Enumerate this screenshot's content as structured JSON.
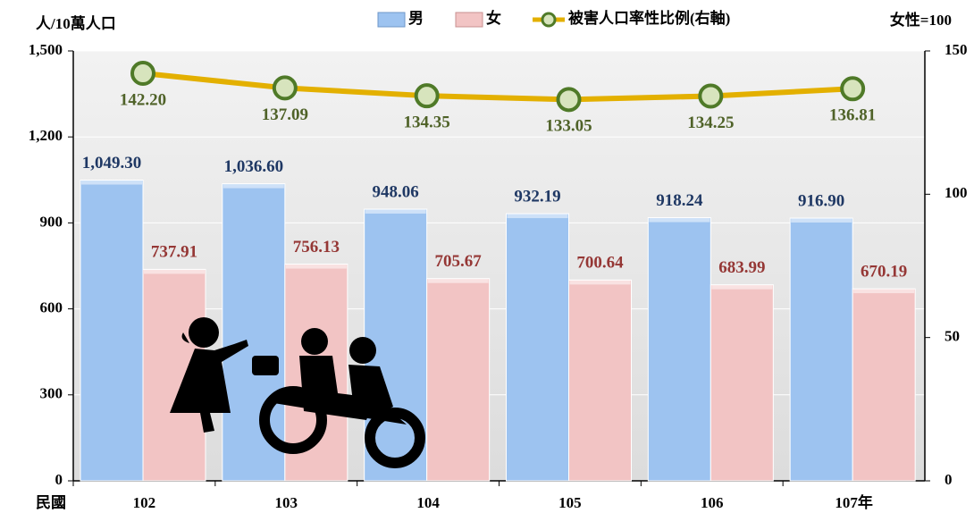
{
  "chart_data": {
    "type": "bar",
    "y_label": "人/10萬人口",
    "y2_label": "女性=100",
    "x_label": "民國",
    "categories": [
      "102",
      "103",
      "104",
      "105",
      "106",
      "107年"
    ],
    "series": [
      {
        "name": "男",
        "color": "#9dc3f0",
        "values": [
          1049.3,
          1036.6,
          948.06,
          932.19,
          918.24,
          916.9
        ],
        "value_labels": [
          "1,049.30",
          "1,036.60",
          "948.06",
          "932.19",
          "918.24",
          "916.90"
        ]
      },
      {
        "name": "女",
        "color": "#f2c4c4",
        "values": [
          737.91,
          756.13,
          705.67,
          700.64,
          683.99,
          670.19
        ]
      },
      {
        "name": "被害人口率性比例(右軸)",
        "color": "#e3b000",
        "type": "line",
        "axis": "y2",
        "values": [
          142.2,
          137.09,
          134.35,
          133.05,
          134.25,
          136.81
        ],
        "value_labels": [
          "142.20",
          "137.09",
          "134.35",
          "133.05",
          "134.25",
          "136.81"
        ]
      }
    ],
    "ylim": [
      0,
      1500
    ],
    "yticks": [
      0,
      300,
      600,
      900,
      {
        "value": 1200,
        "label": "1,200"
      },
      {
        "value": 1500,
        "label": "1,500"
      }
    ],
    "y2lim": [
      0,
      150
    ],
    "y2ticks": [
      0,
      50,
      100,
      150
    ],
    "grid": true,
    "legend": "top"
  }
}
